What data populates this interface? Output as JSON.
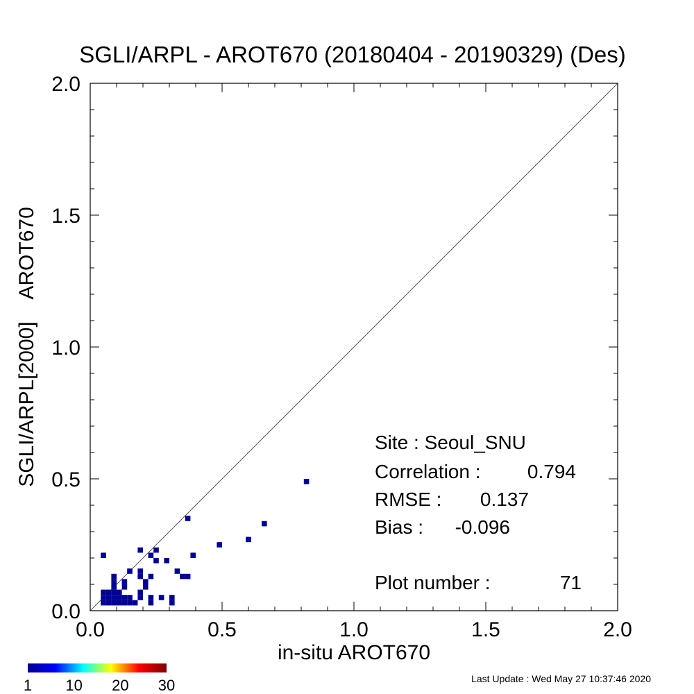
{
  "chart_data": {
    "type": "heatmap",
    "title": "SGLI/ARPL - AROT670 (20180404 - 20190329) (Des)",
    "xlabel": "in-situ AROT670",
    "ylabel": "SGLI/ARPL[2000]    AROT670",
    "xlim": [
      0.0,
      2.0
    ],
    "ylim": [
      0.0,
      2.0
    ],
    "x_ticks": [
      "0.0",
      "0.5",
      "1.0",
      "1.5",
      "2.0"
    ],
    "y_ticks": [
      "0.0",
      "0.5",
      "1.0",
      "1.5",
      "2.0"
    ],
    "grid": false,
    "one_to_one_line": true,
    "bin_size": 0.02,
    "points": [
      {
        "x": 0.05,
        "y": 0.21
      },
      {
        "x": 0.05,
        "y": 0.07
      },
      {
        "x": 0.07,
        "y": 0.07
      },
      {
        "x": 0.09,
        "y": 0.07
      },
      {
        "x": 0.11,
        "y": 0.07
      },
      {
        "x": 0.05,
        "y": 0.05
      },
      {
        "x": 0.07,
        "y": 0.05
      },
      {
        "x": 0.09,
        "y": 0.05
      },
      {
        "x": 0.11,
        "y": 0.05
      },
      {
        "x": 0.13,
        "y": 0.05
      },
      {
        "x": 0.15,
        "y": 0.05
      },
      {
        "x": 0.05,
        "y": 0.03
      },
      {
        "x": 0.07,
        "y": 0.03
      },
      {
        "x": 0.09,
        "y": 0.03
      },
      {
        "x": 0.11,
        "y": 0.03
      },
      {
        "x": 0.13,
        "y": 0.03
      },
      {
        "x": 0.15,
        "y": 0.03
      },
      {
        "x": 0.17,
        "y": 0.03
      },
      {
        "x": 0.09,
        "y": 0.13
      },
      {
        "x": 0.09,
        "y": 0.11
      },
      {
        "x": 0.09,
        "y": 0.09
      },
      {
        "x": 0.13,
        "y": 0.11
      },
      {
        "x": 0.13,
        "y": 0.09
      },
      {
        "x": 0.15,
        "y": 0.15
      },
      {
        "x": 0.19,
        "y": 0.23
      },
      {
        "x": 0.19,
        "y": 0.15
      },
      {
        "x": 0.19,
        "y": 0.13
      },
      {
        "x": 0.19,
        "y": 0.07
      },
      {
        "x": 0.19,
        "y": 0.05
      },
      {
        "x": 0.21,
        "y": 0.11
      },
      {
        "x": 0.21,
        "y": 0.09
      },
      {
        "x": 0.23,
        "y": 0.21
      },
      {
        "x": 0.23,
        "y": 0.13
      },
      {
        "x": 0.23,
        "y": 0.05
      },
      {
        "x": 0.23,
        "y": 0.03
      },
      {
        "x": 0.25,
        "y": 0.23
      },
      {
        "x": 0.25,
        "y": 0.19
      },
      {
        "x": 0.27,
        "y": 0.05
      },
      {
        "x": 0.29,
        "y": 0.19
      },
      {
        "x": 0.31,
        "y": 0.05
      },
      {
        "x": 0.31,
        "y": 0.03
      },
      {
        "x": 0.33,
        "y": 0.15
      },
      {
        "x": 0.35,
        "y": 0.13
      },
      {
        "x": 0.37,
        "y": 0.35
      },
      {
        "x": 0.37,
        "y": 0.13
      },
      {
        "x": 0.39,
        "y": 0.21
      },
      {
        "x": 0.49,
        "y": 0.25
      },
      {
        "x": 0.6,
        "y": 0.27
      },
      {
        "x": 0.66,
        "y": 0.33
      },
      {
        "x": 0.82,
        "y": 0.49
      }
    ],
    "point_color": "#000096",
    "colorbar": {
      "ticks": [
        "1",
        "10",
        "20",
        "30"
      ],
      "colors": [
        "#00008f",
        "#0000ff",
        "#00ffff",
        "#ffff00",
        "#ff0000",
        "#800000"
      ]
    }
  },
  "stats": {
    "site": "Site : Seoul_SNU",
    "correlation_label": "Correlation :",
    "correlation_value": "0.794",
    "rmse_label": "RMSE :",
    "rmse_value": "0.137",
    "bias_label": "Bias :",
    "bias_value": "-0.096",
    "plot_number_label": "Plot number :",
    "plot_number_value": "71"
  },
  "last_update": "Last Update : Wed May 27 10:37:46 2020"
}
